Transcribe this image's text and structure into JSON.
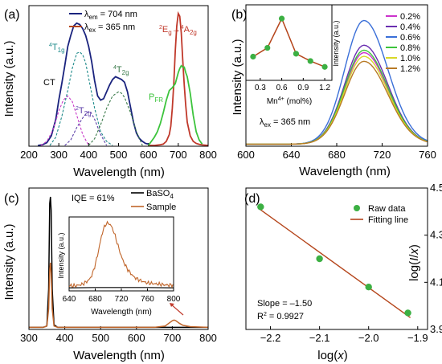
{
  "panels": [
    {
      "letter": "(a)"
    },
    {
      "letter": "(b)"
    },
    {
      "letter": "(c)"
    },
    {
      "letter": "(d)"
    }
  ],
  "chart_data": [
    {
      "id": "a",
      "type": "line",
      "xlabel": "Wavelength (nm)",
      "ylabel": "Intensity (a.u.)",
      "xlim": [
        200,
        800
      ],
      "xticks": [
        200,
        300,
        400,
        500,
        600,
        700,
        800
      ],
      "ylim": [
        0,
        1
      ],
      "yticks_shown": false,
      "legend": {
        "position": "top-center",
        "entries": [
          {
            "label_main": "λ",
            "label_sub": "em",
            "label_rest": " = 704 nm",
            "color": "#1a237e"
          },
          {
            "label_main": "λ",
            "label_sub": "ex",
            "label_rest": " = 365 nm",
            "color": "#b5451b"
          }
        ]
      },
      "series": [
        {
          "role": "excitation",
          "color": "#1a237e",
          "style": "solid",
          "x": [
            230,
            245,
            260,
            275,
            290,
            300,
            310,
            320,
            330,
            340,
            350,
            360,
            370,
            380,
            390,
            400,
            410,
            420,
            430,
            440,
            450,
            460,
            470,
            480,
            490,
            500,
            510,
            520,
            530,
            540,
            550,
            560,
            570,
            580,
            590,
            600
          ],
          "y": [
            0.0,
            0.005,
            0.02,
            0.07,
            0.19,
            0.33,
            0.45,
            0.58,
            0.72,
            0.8,
            0.87,
            0.89,
            0.88,
            0.85,
            0.8,
            0.72,
            0.61,
            0.47,
            0.36,
            0.33,
            0.34,
            0.39,
            0.44,
            0.48,
            0.5,
            0.49,
            0.48,
            0.46,
            0.39,
            0.28,
            0.17,
            0.09,
            0.05,
            0.03,
            0.015,
            0.01
          ]
        },
        {
          "role": "emission",
          "color": "#c0392b",
          "style": "solid",
          "x": [
            600,
            620,
            640,
            650,
            660,
            670,
            675,
            680,
            685,
            690,
            695,
            700,
            705,
            710,
            715,
            720,
            725,
            730,
            740,
            750,
            760,
            770,
            780,
            790,
            800
          ],
          "y": [
            0.0,
            0.0,
            0.005,
            0.01,
            0.03,
            0.08,
            0.14,
            0.27,
            0.45,
            0.69,
            0.87,
            0.96,
            0.94,
            0.82,
            0.62,
            0.44,
            0.29,
            0.17,
            0.07,
            0.03,
            0.015,
            0.008,
            0.004,
            0.002,
            0.0
          ]
        },
        {
          "role": "PFR",
          "color": "#3cc43c",
          "style": "solid",
          "x": [
            600,
            610,
            620,
            630,
            640,
            650,
            660,
            670,
            680,
            690,
            700,
            705,
            710,
            715,
            720,
            725,
            730,
            740,
            750,
            760,
            770,
            780
          ],
          "y": [
            0.0,
            0.03,
            0.06,
            0.1,
            0.16,
            0.24,
            0.33,
            0.4,
            0.42,
            0.45,
            0.53,
            0.56,
            0.58,
            0.57,
            0.57,
            0.53,
            0.5,
            0.38,
            0.22,
            0.1,
            0.04,
            0.01
          ]
        },
        {
          "role": "fit-4T1g",
          "color": "#1e8a8a",
          "style": "dashed",
          "x": [
            270,
            290,
            310,
            330,
            345,
            360,
            370,
            380,
            390,
            400,
            420,
            440,
            460,
            480
          ],
          "y": [
            0.0,
            0.06,
            0.21,
            0.4,
            0.56,
            0.67,
            0.68,
            0.66,
            0.6,
            0.49,
            0.27,
            0.1,
            0.03,
            0.0
          ]
        },
        {
          "role": "fit-CT",
          "color": "#c838c8",
          "style": "dashed",
          "x": [
            240,
            260,
            280,
            300,
            315,
            330,
            345,
            360,
            380,
            400
          ],
          "y": [
            0.0,
            0.03,
            0.11,
            0.25,
            0.33,
            0.36,
            0.32,
            0.22,
            0.08,
            0.0
          ]
        },
        {
          "role": "fit-2T2g",
          "color": "#5c3fa8",
          "style": "dashed",
          "x": [
            320,
            340,
            360,
            380,
            395,
            405,
            420,
            440,
            460
          ],
          "y": [
            0.0,
            0.04,
            0.13,
            0.2,
            0.24,
            0.25,
            0.19,
            0.08,
            0.0
          ]
        },
        {
          "role": "fit-4T2g",
          "color": "#3a7a4a",
          "style": "dashed",
          "x": [
            400,
            420,
            440,
            460,
            480,
            500,
            510,
            520,
            540,
            560,
            580
          ],
          "y": [
            0.0,
            0.05,
            0.15,
            0.27,
            0.36,
            0.39,
            0.38,
            0.35,
            0.24,
            0.1,
            0.0
          ]
        }
      ],
      "annotations": [
        {
          "pre_sup": "4",
          "main": "T",
          "sub": "1g",
          "color": "#1e8a8a"
        },
        {
          "main": "CT",
          "color": "#c838c8"
        },
        {
          "pre_sup": "2",
          "main": "T",
          "sub": "2g",
          "color": "#5c3fa8"
        },
        {
          "pre_sup": "4",
          "main": "T",
          "sub": "2g",
          "color": "#3a7a4a"
        },
        {
          "main": "P",
          "sub": "FR",
          "color": "#3cc43c"
        },
        {
          "pre_sup": "2",
          "main": "E",
          "sub": "g",
          "arrow": "→",
          "pre_sup2": "4",
          "main2": "A",
          "sub2": "2g",
          "color": "#c0392b"
        }
      ]
    },
    {
      "id": "b",
      "type": "line",
      "xlabel": "Wavelength (nm)",
      "ylabel": "Intensity (a.u.)",
      "xlim": [
        600,
        760
      ],
      "xticks": [
        600,
        640,
        680,
        720,
        760
      ],
      "yticks_shown": false,
      "annotation": {
        "main": "λ",
        "sub": "ex",
        "rest": " = 365 nm"
      },
      "peak_position": 704,
      "series": [
        {
          "name": "0.2%",
          "color": "#cc33cc",
          "peak": 0.74
        },
        {
          "name": "0.4%",
          "color": "#6a2fb0",
          "peak": 0.8
        },
        {
          "name": "0.6%",
          "color": "#3a6fd8",
          "peak": 1.0
        },
        {
          "name": "0.8%",
          "color": "#3cc43c",
          "peak": 0.76
        },
        {
          "name": "1.0%",
          "color": "#d8d828",
          "peak": 0.71
        },
        {
          "name": "1.2%",
          "color": "#b87a26",
          "peak": 0.67
        }
      ],
      "inset": {
        "type": "line",
        "xlabel_main": "Mn",
        "xlabel_sup": "4+",
        "xlabel_rest": " (mol%)",
        "ylabel": "Intensity (a.u.)",
        "xlim": [
          0.1,
          1.3
        ],
        "xticks": [
          "0.3",
          "0.6",
          "0.9",
          "1.2"
        ],
        "x": [
          0.2,
          0.4,
          0.6,
          0.8,
          1.0,
          1.2
        ],
        "y": [
          0.74,
          0.8,
          1.0,
          0.76,
          0.71,
          0.67
        ],
        "line_color": "#b5451b",
        "marker_color": "#3cb043"
      }
    },
    {
      "id": "c",
      "type": "line",
      "xlabel": "Wavelength (nm)",
      "ylabel": "Intensity (a.u.)",
      "xlim": [
        300,
        800
      ],
      "xticks": [
        300,
        400,
        500,
        600,
        700,
        800
      ],
      "yticks_shown": false,
      "annotation": "IQE = 61%",
      "legend": {
        "position": "top-right",
        "entries": [
          {
            "label": "BaSO",
            "sub": "4",
            "color": "#000000"
          },
          {
            "label": "Sample",
            "color": "#c0652a"
          }
        ]
      },
      "series": [
        {
          "name": "BaSO4",
          "color": "#000000",
          "x": [
            300,
            340,
            350,
            355,
            358,
            360,
            362,
            365,
            370,
            380,
            450,
            550,
            650,
            700,
            750,
            800
          ],
          "y": [
            0.01,
            0.01,
            0.02,
            0.3,
            0.95,
            1.0,
            0.9,
            0.3,
            0.03,
            0.01,
            0.01,
            0.01,
            0.01,
            0.01,
            0.01,
            0.01
          ]
        },
        {
          "name": "Sample",
          "color": "#c0652a",
          "x": [
            300,
            340,
            350,
            355,
            358,
            360,
            362,
            365,
            370,
            380,
            450,
            550,
            650,
            680,
            690,
            700,
            705,
            710,
            720,
            730,
            750,
            800
          ],
          "y": [
            0.01,
            0.01,
            0.02,
            0.15,
            0.45,
            0.5,
            0.42,
            0.15,
            0.02,
            0.01,
            0.01,
            0.01,
            0.01,
            0.02,
            0.04,
            0.06,
            0.065,
            0.06,
            0.04,
            0.025,
            0.015,
            0.01
          ]
        }
      ],
      "inset": {
        "type": "line",
        "xlabel": "Wavelength (nm)",
        "ylabel": "Intensity (a.u.)",
        "xlim": [
          640,
          800
        ],
        "xticks": [
          640,
          680,
          720,
          760,
          800
        ],
        "sample": {
          "color": "#c0652a",
          "x": [
            640,
            650,
            660,
            670,
            675,
            680,
            685,
            690,
            695,
            700,
            705,
            710,
            715,
            720,
            725,
            730,
            735,
            740,
            750,
            760,
            770,
            780,
            790,
            800
          ],
          "y": [
            0.05,
            0.05,
            0.07,
            0.13,
            0.2,
            0.35,
            0.55,
            0.78,
            0.92,
            0.95,
            0.9,
            0.78,
            0.62,
            0.47,
            0.36,
            0.28,
            0.22,
            0.17,
            0.12,
            0.09,
            0.08,
            0.07,
            0.06,
            0.06
          ]
        },
        "baso4": {
          "color": "#000000",
          "x": [
            640,
            680,
            720,
            760,
            800
          ],
          "y": [
            0.02,
            0.025,
            0.025,
            0.025,
            0.02
          ]
        }
      }
    },
    {
      "id": "d",
      "type": "scatter",
      "xlabel": "log(x)",
      "ylabel": "log(I/x)",
      "xlim": [
        -2.25,
        -1.88
      ],
      "xticks": [
        -2.2,
        -2.1,
        -2.0,
        -1.9
      ],
      "ylim": [
        3.9,
        4.5
      ],
      "yticks": [
        3.9,
        4.1,
        4.3,
        4.5
      ],
      "legend": {
        "position": "top-right",
        "entries": [
          {
            "label": "Raw data",
            "marker": "circle",
            "color": "#3cb043"
          },
          {
            "label": "Fitting line",
            "marker": "line",
            "color": "#b5451b"
          }
        ]
      },
      "points": [
        [
          -2.22,
          4.42
        ],
        [
          -2.1,
          4.2
        ],
        [
          -2.0,
          4.08
        ],
        [
          -1.92,
          3.97
        ]
      ],
      "fit": {
        "slope": -1.5,
        "r2": 0.9927
      },
      "annotations": [
        "Slope = –1.50",
        "R",
        "2",
        " = 0.9927"
      ]
    }
  ]
}
